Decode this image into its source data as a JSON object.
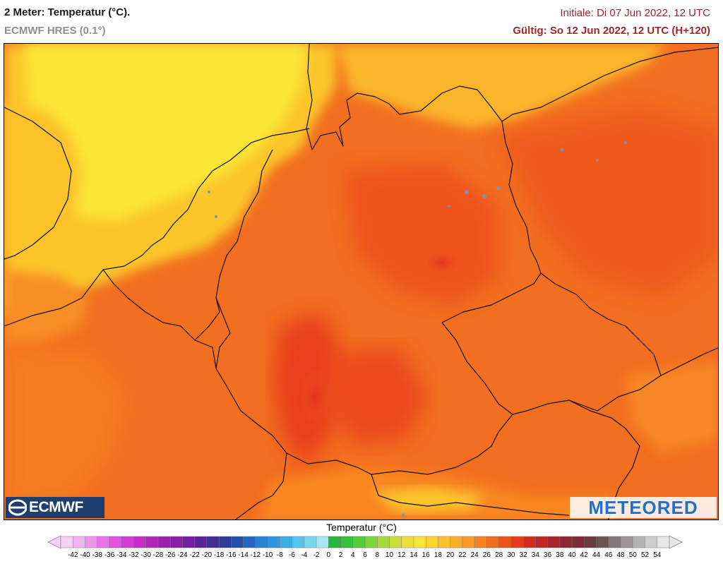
{
  "header": {
    "title": "2 Meter: Temperatur (°C).",
    "model": "ECMWF HRES (0.1°)",
    "initiale": "Initiale: Di 07 Jun 2022, 12 UTC",
    "gueltig": "Gültig: So 12 Jun 2022, 12 UTC (H+120)"
  },
  "logos": {
    "left": "ECMWF",
    "right": "METEORED"
  },
  "legend": {
    "title": "Temperatur (°C)",
    "ticks": [
      "-42",
      "-40",
      "-38",
      "-36",
      "-34",
      "-32",
      "-30",
      "-28",
      "-26",
      "-24",
      "-22",
      "-20",
      "-18",
      "-16",
      "-14",
      "-12",
      "-10",
      "-8",
      "-6",
      "-4",
      "-2",
      "0",
      "2",
      "4",
      "6",
      "8",
      "10",
      "12",
      "14",
      "16",
      "18",
      "20",
      "22",
      "24",
      "26",
      "28",
      "30",
      "32",
      "34",
      "36",
      "38",
      "40",
      "42",
      "44",
      "46",
      "48",
      "50",
      "52",
      "54"
    ],
    "colors": [
      "#f7d0f7",
      "#f3b4f3",
      "#ee93ee",
      "#e872e8",
      "#e052e0",
      "#d43ad4",
      "#c42ec4",
      "#b127b7",
      "#9b20ae",
      "#8a1fa6",
      "#74219d",
      "#5c2399",
      "#442b96",
      "#2f3a9b",
      "#2450ab",
      "#2468c0",
      "#2880d2",
      "#2f96de",
      "#3aaee6",
      "#56c4ec",
      "#7ad7f0",
      "#a8e7f3",
      "#26b536",
      "#39c13a",
      "#57cc3a",
      "#7ed43b",
      "#a8d93c",
      "#cfdc3b",
      "#f0e03b",
      "#fbe637",
      "#fcd533",
      "#fcc22c",
      "#fbae28",
      "#f89a25",
      "#f58322",
      "#f26b1f",
      "#ef521d",
      "#e63b1d",
      "#d32d22",
      "#bf2626",
      "#a8252a",
      "#8f2830",
      "#7a2d34",
      "#6a3a3e",
      "#6e5256",
      "#85747b",
      "#9c949b",
      "#b6b2b7",
      "#cfcdd0",
      "#e7e6e7"
    ]
  }
}
